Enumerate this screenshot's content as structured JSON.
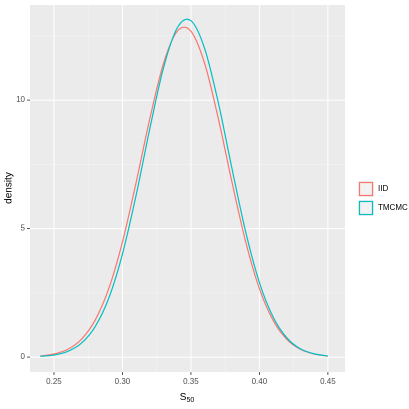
{
  "chart_data": {
    "type": "line",
    "x_label": "S",
    "x_label_subscript": "50",
    "y_label": "density",
    "x": [
      0.24,
      0.25,
      0.26,
      0.27,
      0.28,
      0.29,
      0.3,
      0.31,
      0.32,
      0.33,
      0.34,
      0.35,
      0.36,
      0.37,
      0.38,
      0.39,
      0.4,
      0.41,
      0.42,
      0.43,
      0.44,
      0.45
    ],
    "series": [
      {
        "name": "IID",
        "color": "#f8766d",
        "values": [
          0.04,
          0.12,
          0.3,
          0.69,
          1.43,
          2.66,
          4.48,
          6.8,
          9.28,
          11.43,
          12.68,
          12.68,
          11.43,
          9.28,
          6.8,
          4.48,
          2.66,
          1.43,
          0.69,
          0.3,
          0.12,
          0.04
        ]
      },
      {
        "name": "TMCMC",
        "color": "#00bfc4",
        "values": [
          0.03,
          0.08,
          0.22,
          0.54,
          1.18,
          2.29,
          4.01,
          6.3,
          8.89,
          11.26,
          12.81,
          13.09,
          12.01,
          9.9,
          7.33,
          4.87,
          2.9,
          1.56,
          0.75,
          0.32,
          0.13,
          0.04
        ]
      }
    ],
    "xlim": [
      0.2325,
      0.4625
    ],
    "ylim": [
      -0.58,
      13.7
    ],
    "xticks": [
      0.25,
      {
        "value": 0.3,
        "label": "0.30"
      },
      0.35,
      {
        "value": 0.4,
        "label": "0.40"
      },
      0.45
    ],
    "yticks": [
      0,
      5,
      10
    ],
    "grid": true,
    "legend": "right"
  }
}
